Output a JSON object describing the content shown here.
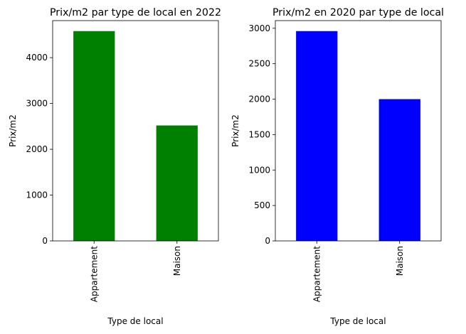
{
  "chart_data": [
    {
      "type": "bar",
      "title": "Prix/m2 par type de local en 2022",
      "xlabel": "Type de local",
      "ylabel": "Prix/m2",
      "categories": [
        "Appartement",
        "Maison"
      ],
      "values": [
        4580,
        2520
      ],
      "ylim": [
        0,
        4809
      ],
      "yticks": [
        0,
        1000,
        2000,
        3000,
        4000
      ],
      "bar_color": "#008000",
      "grid": false,
      "legend": false
    },
    {
      "type": "bar",
      "title": "Prix/m2 en 2020 par type de local",
      "xlabel": "Type de local",
      "ylabel": "Prix/m2",
      "categories": [
        "Appartement",
        "Maison"
      ],
      "values": [
        2960,
        2000
      ],
      "ylim": [
        0,
        3108
      ],
      "yticks": [
        0,
        500,
        1000,
        1500,
        2000,
        2500,
        3000
      ],
      "bar_color": "#0000ff",
      "grid": false,
      "legend": false
    }
  ]
}
